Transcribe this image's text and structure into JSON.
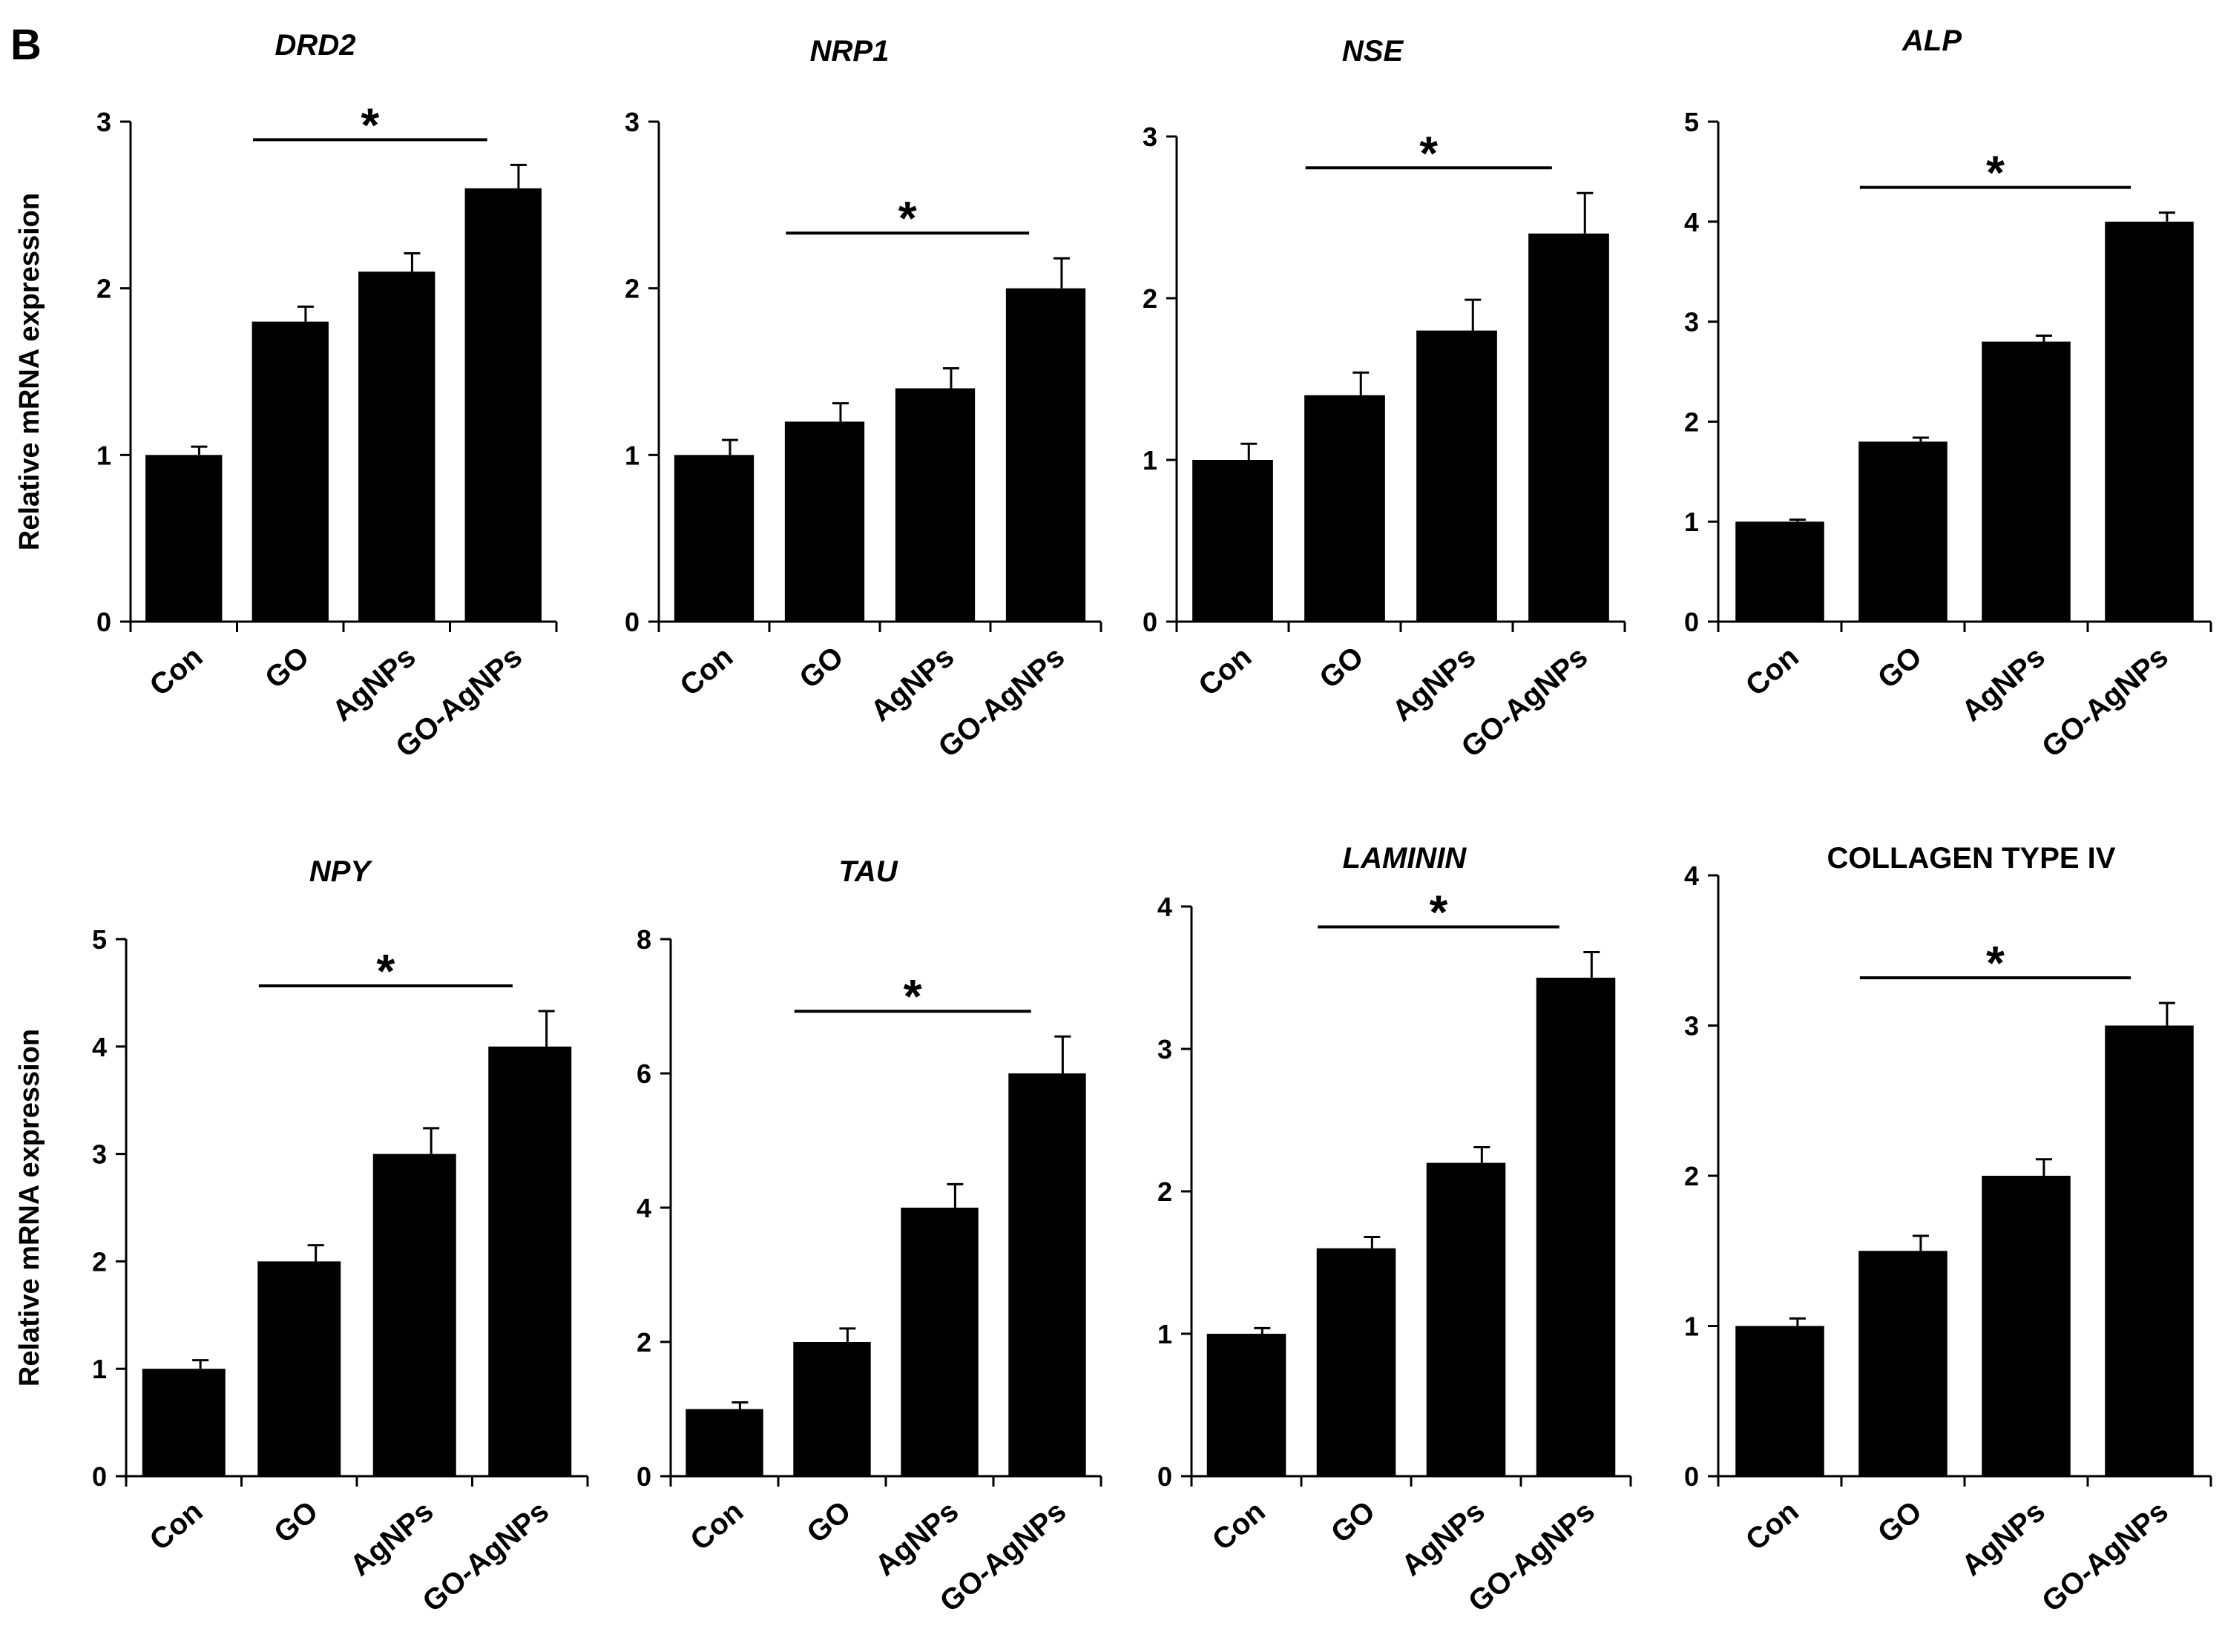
{
  "panel_label": "B",
  "chart_data": [
    {
      "type": "bar",
      "title": "DRD2",
      "title_italic": true,
      "ylabel": "Relative mRNA expression",
      "xlabel": "",
      "categories": [
        "Con",
        "GO",
        "AgNPs",
        "GO-AgNPs"
      ],
      "values": [
        1.0,
        1.8,
        2.1,
        2.6
      ],
      "errors": [
        0.05,
        0.09,
        0.11,
        0.14
      ],
      "ylim": [
        0,
        3
      ],
      "yticks": [
        0,
        1,
        2,
        3
      ],
      "ytick_labels": [
        "0",
        "1",
        "2",
        "3"
      ],
      "significance": {
        "from": 1,
        "to": 3,
        "label": "*"
      }
    },
    {
      "type": "bar",
      "title": "NRP1",
      "title_italic": true,
      "ylabel": "",
      "xlabel": "",
      "categories": [
        "Con",
        "GO",
        "AgNPs",
        "GO-AgNPs"
      ],
      "values": [
        1.0,
        1.2,
        1.4,
        2.0
      ],
      "errors": [
        0.09,
        0.11,
        0.12,
        0.18
      ],
      "ylim": [
        0,
        3
      ],
      "yticks": [
        0,
        1,
        2,
        3
      ],
      "ytick_labels": [
        "0",
        "1",
        "2",
        "3"
      ],
      "significance": {
        "from": 1,
        "to": 3,
        "label": "*"
      }
    },
    {
      "type": "bar",
      "title": "NSE",
      "title_italic": true,
      "ylabel": "",
      "xlabel": "",
      "categories": [
        "Con",
        "GO",
        "AgNPs",
        "GO-AgNPs"
      ],
      "values": [
        1.0,
        1.4,
        1.8,
        2.4
      ],
      "errors": [
        0.1,
        0.14,
        0.19,
        0.25
      ],
      "ylim": [
        0,
        3
      ],
      "yticks": [
        0,
        1,
        2,
        3
      ],
      "ytick_labels": [
        "0",
        "1",
        "2",
        "3"
      ],
      "significance": {
        "from": 1,
        "to": 3,
        "label": "*"
      }
    },
    {
      "type": "bar",
      "title": "ALP",
      "title_italic": true,
      "ylabel": "",
      "xlabel": "",
      "categories": [
        "Con",
        "GO",
        "AgNPs",
        "GO-AgNPs"
      ],
      "values": [
        1.0,
        1.8,
        2.8,
        4.0
      ],
      "errors": [
        0.02,
        0.04,
        0.06,
        0.09
      ],
      "ylim": [
        0,
        5
      ],
      "yticks": [
        0,
        1,
        2,
        3,
        4,
        5
      ],
      "ytick_labels": [
        "0",
        "1",
        "2",
        "3",
        "4",
        "5"
      ],
      "significance": {
        "from": 1,
        "to": 3,
        "label": "*"
      }
    },
    {
      "type": "bar",
      "title": "NPY",
      "title_italic": true,
      "ylabel": "Relative mRNA expression",
      "xlabel": "",
      "categories": [
        "Con",
        "GO",
        "AgNPs",
        "GO-AgNPs"
      ],
      "values": [
        1.0,
        2.0,
        3.0,
        4.0
      ],
      "errors": [
        0.08,
        0.15,
        0.24,
        0.33
      ],
      "ylim": [
        0,
        5
      ],
      "yticks": [
        0,
        1,
        2,
        3,
        4,
        5
      ],
      "ytick_labels": [
        "0",
        "1",
        "2",
        "3",
        "4",
        "5"
      ],
      "significance": {
        "from": 1,
        "to": 3,
        "label": "*"
      }
    },
    {
      "type": "bar",
      "title": "TAU",
      "title_italic": true,
      "ylabel": "",
      "xlabel": "",
      "categories": [
        "Con",
        "GO",
        "AgNPs",
        "GO-AgNPs"
      ],
      "values": [
        1.0,
        2.0,
        4.0,
        6.0
      ],
      "errors": [
        0.1,
        0.2,
        0.35,
        0.55
      ],
      "ylim": [
        0,
        8
      ],
      "yticks": [
        0,
        2,
        4,
        6,
        8
      ],
      "ytick_labels": [
        "0",
        "2",
        "4",
        "6",
        "8"
      ],
      "significance": {
        "from": 1,
        "to": 3,
        "label": "*"
      }
    },
    {
      "type": "bar",
      "title": "LAMININ",
      "title_italic": true,
      "ylabel": "",
      "xlabel": "",
      "categories": [
        "Con",
        "GO",
        "AgNPs",
        "GO-AgNPs"
      ],
      "values": [
        1.0,
        1.6,
        2.2,
        3.5
      ],
      "errors": [
        0.04,
        0.08,
        0.11,
        0.18
      ],
      "ylim": [
        0,
        4
      ],
      "yticks": [
        0,
        1,
        2,
        3,
        4
      ],
      "ytick_labels": [
        "0",
        "1",
        "2",
        "3",
        "4"
      ],
      "significance": {
        "from": 1,
        "to": 3,
        "label": "*"
      }
    },
    {
      "type": "bar",
      "title": "COLLAGEN  TYPE IV",
      "title_italic": false,
      "ylabel": "",
      "xlabel": "",
      "categories": [
        "Con",
        "GO",
        "AgNPs",
        "GO-AgNPs"
      ],
      "values": [
        1.0,
        1.5,
        2.0,
        3.0
      ],
      "errors": [
        0.05,
        0.1,
        0.11,
        0.15
      ],
      "ylim": [
        0,
        4
      ],
      "yticks": [
        0,
        1,
        2,
        3,
        4
      ],
      "ytick_labels": [
        "0",
        "1",
        "2",
        "3",
        "4"
      ],
      "significance": {
        "from": 1,
        "to": 3,
        "label": "*"
      }
    }
  ]
}
